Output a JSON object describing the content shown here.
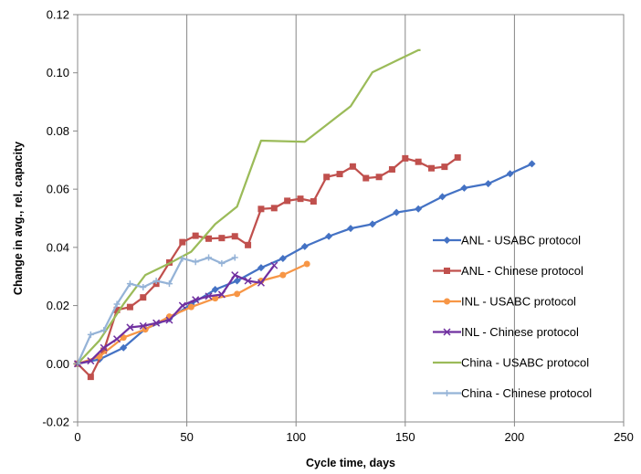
{
  "chart_data": {
    "type": "line",
    "title": "",
    "xlabel": "Cycle time, days",
    "ylabel": "Change in avg., rel. capacity",
    "xlim": [
      0,
      250
    ],
    "ylim": [
      -0.02,
      0.12
    ],
    "xticks": [
      0,
      50,
      100,
      150,
      200,
      250
    ],
    "xtick_labels": [
      "0",
      "50",
      "100",
      "150",
      "200",
      "250"
    ],
    "yticks": [
      -0.02,
      0.0,
      0.02,
      0.04,
      0.06,
      0.08,
      0.1,
      0.12
    ],
    "ytick_labels": [
      "-0.02",
      "0.00",
      "0.02",
      "0.04",
      "0.06",
      "0.08",
      "0.10",
      "0.12"
    ],
    "grid": "vertical",
    "legend_position": "right",
    "series": [
      {
        "name": "ANL - USABC protocol",
        "color": "#4472C4",
        "marker": "diamond",
        "points": [
          [
            0,
            0.0
          ],
          [
            10,
            0.0015
          ],
          [
            21,
            0.0055
          ],
          [
            31,
            0.012
          ],
          [
            42,
            0.0155
          ],
          [
            52,
            0.0205
          ],
          [
            63,
            0.0255
          ],
          [
            73,
            0.0285
          ],
          [
            84,
            0.033
          ],
          [
            94,
            0.0362
          ],
          [
            104,
            0.0403
          ],
          [
            115,
            0.0438
          ],
          [
            125,
            0.0465
          ],
          [
            135,
            0.048
          ],
          [
            146,
            0.052
          ],
          [
            156,
            0.0532
          ],
          [
            167,
            0.0574
          ],
          [
            177,
            0.0604
          ],
          [
            188,
            0.0619
          ],
          [
            198,
            0.0653
          ],
          [
            208,
            0.0687
          ]
        ]
      },
      {
        "name": "ANL - Chinese protocol",
        "color": "#C0504D",
        "marker": "square",
        "points": [
          [
            0,
            0.0
          ],
          [
            6,
            -0.0045
          ],
          [
            12,
            0.0045
          ],
          [
            18,
            0.0185
          ],
          [
            24,
            0.0195
          ],
          [
            30,
            0.0228
          ],
          [
            36,
            0.0275
          ],
          [
            42,
            0.0348
          ],
          [
            48,
            0.0418
          ],
          [
            54,
            0.044
          ],
          [
            60,
            0.043
          ],
          [
            66,
            0.0432
          ],
          [
            72,
            0.0438
          ],
          [
            78,
            0.0408
          ],
          [
            84,
            0.0532
          ],
          [
            90,
            0.0535
          ],
          [
            96,
            0.056
          ],
          [
            102,
            0.0567
          ],
          [
            108,
            0.0558
          ],
          [
            114,
            0.0642
          ],
          [
            120,
            0.0652
          ],
          [
            126,
            0.0678
          ],
          [
            132,
            0.0638
          ],
          [
            138,
            0.0642
          ],
          [
            144,
            0.0668
          ],
          [
            150,
            0.0706
          ],
          [
            156,
            0.0694
          ],
          [
            162,
            0.0672
          ],
          [
            168,
            0.0677
          ],
          [
            174,
            0.0709
          ]
        ]
      },
      {
        "name": "INL - USABC protocol",
        "color": "#F79646",
        "marker": "circle",
        "points": [
          [
            0,
            0.0
          ],
          [
            10,
            0.0025
          ],
          [
            21,
            0.009
          ],
          [
            31,
            0.0118
          ],
          [
            42,
            0.0162
          ],
          [
            52,
            0.0195
          ],
          [
            63,
            0.0225
          ],
          [
            73,
            0.024
          ],
          [
            84,
            0.0285
          ],
          [
            94,
            0.0305
          ],
          [
            105,
            0.0343
          ]
        ]
      },
      {
        "name": "INL - Chinese protocol",
        "color": "#7030A0",
        "marker": "x",
        "points": [
          [
            0,
            0.0
          ],
          [
            6,
            0.001
          ],
          [
            12,
            0.0055
          ],
          [
            18,
            0.0085
          ],
          [
            24,
            0.0125
          ],
          [
            30,
            0.013
          ],
          [
            36,
            0.014
          ],
          [
            42,
            0.015
          ],
          [
            48,
            0.02
          ],
          [
            54,
            0.022
          ],
          [
            60,
            0.0232
          ],
          [
            66,
            0.0238
          ],
          [
            72,
            0.0305
          ],
          [
            78,
            0.0285
          ],
          [
            84,
            0.0278
          ],
          [
            90,
            0.0338
          ]
        ]
      },
      {
        "name": "China - USABC protocol",
        "color": "#9BBB59",
        "marker": "none",
        "points": [
          [
            0,
            0.0
          ],
          [
            10,
            0.008
          ],
          [
            21,
            0.0205
          ],
          [
            31,
            0.0305
          ],
          [
            42,
            0.0345
          ],
          [
            52,
            0.0385
          ],
          [
            63,
            0.048
          ],
          [
            73,
            0.054
          ],
          [
            84,
            0.0767
          ],
          [
            104,
            0.0763
          ],
          [
            115,
            0.0827
          ],
          [
            125,
            0.0885
          ],
          [
            135,
            0.1002
          ],
          [
            146,
            0.1042
          ],
          [
            156,
            0.1078
          ],
          [
            157,
            0.1078
          ]
        ]
      },
      {
        "name": "China - Chinese protocol",
        "color": "#95B3D7",
        "marker": "plus",
        "points": [
          [
            0,
            0.0
          ],
          [
            6,
            0.01
          ],
          [
            12,
            0.0115
          ],
          [
            18,
            0.0205
          ],
          [
            24,
            0.0275
          ],
          [
            30,
            0.0263
          ],
          [
            36,
            0.0285
          ],
          [
            42,
            0.0275
          ],
          [
            48,
            0.0362
          ],
          [
            54,
            0.035
          ],
          [
            60,
            0.0365
          ],
          [
            66,
            0.0345
          ],
          [
            72,
            0.0365
          ]
        ]
      }
    ]
  }
}
